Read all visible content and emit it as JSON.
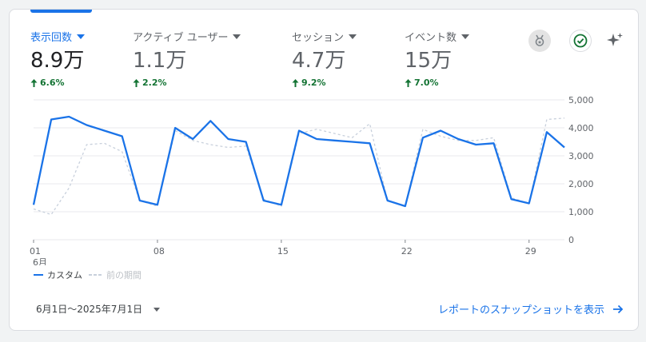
{
  "metrics": [
    {
      "label": "表示回数",
      "value": "8.9万",
      "change": "6.6%",
      "active": true
    },
    {
      "label": "アクティブ ユーザー",
      "value": "1.1万",
      "change": "2.2%",
      "active": false
    },
    {
      "label": "セッション",
      "value": "4.7万",
      "change": "9.2%",
      "active": false
    },
    {
      "label": "イベント数",
      "value": "15万",
      "change": "7.0%",
      "active": false
    }
  ],
  "icons": {
    "insights": "insights-badge-icon",
    "status": "check-circle-icon",
    "ai": "sparkle-icon"
  },
  "colors": {
    "accent": "#1a73e8",
    "positive": "#137333",
    "previous": "#c8d0dc"
  },
  "chart_data": {
    "type": "line",
    "x": [
      1,
      2,
      3,
      4,
      5,
      6,
      7,
      8,
      9,
      10,
      11,
      12,
      13,
      14,
      15,
      16,
      17,
      18,
      19,
      20,
      21,
      22,
      23,
      24,
      25,
      26,
      27,
      28,
      29,
      30,
      31
    ],
    "x_tick_labels": [
      "01",
      "08",
      "15",
      "22",
      "29"
    ],
    "x_tick_days": [
      1,
      8,
      15,
      22,
      29
    ],
    "x_sub_label": "6月",
    "y_tick_labels": [
      "5,000",
      "4,000",
      "3,000",
      "2,000",
      "1,000",
      "0"
    ],
    "ylim": [
      0,
      5000
    ],
    "y_axis_side": "right",
    "grid": true,
    "legend_position": "bottom-left",
    "series": [
      {
        "name": "カスタム",
        "style": "solid",
        "values": [
          1250,
          4300,
          4400,
          4100,
          3900,
          3700,
          1400,
          1250,
          4000,
          3600,
          4250,
          3600,
          3500,
          1400,
          1250,
          3900,
          3600,
          3550,
          3500,
          3450,
          1400,
          1200,
          3650,
          3900,
          3600,
          3400,
          3450,
          1450,
          1300,
          3850,
          3300
        ]
      },
      {
        "name": "前の期間",
        "style": "dashed",
        "values": [
          1100,
          900,
          1850,
          3400,
          3450,
          3150,
          1400,
          1200,
          3900,
          3550,
          3400,
          3300,
          3350,
          1450,
          1200,
          3800,
          3950,
          3800,
          3650,
          4150,
          1400,
          1200,
          3950,
          3700,
          3550,
          3550,
          3650,
          1500,
          1300,
          4300,
          4350
        ]
      }
    ]
  },
  "footer": {
    "date_range": "6月1日〜2025年7月1日",
    "snapshot_link": "レポートのスナップショットを表示"
  }
}
